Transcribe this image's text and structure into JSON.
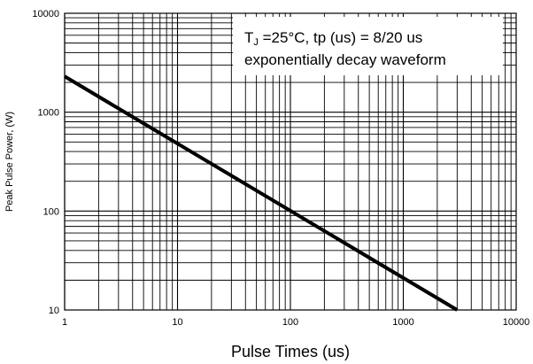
{
  "chart_data": {
    "type": "line",
    "title": "",
    "xlabel": "Pulse Times (us)",
    "ylabel": "Peak Pulse Power, (W)",
    "x_scale": "log",
    "y_scale": "log",
    "xlim": [
      1,
      10000
    ],
    "ylim": [
      10,
      10000
    ],
    "x_ticks": [
      "1",
      "10",
      "100",
      "1000",
      "10000"
    ],
    "y_ticks": [
      "10",
      "100",
      "1000",
      "10000"
    ],
    "grid": true,
    "series": [
      {
        "x": [
          1,
          3000
        ],
        "y": [
          2300,
          10
        ]
      }
    ],
    "annotation": {
      "line1_main": "T",
      "line1_sub": "J",
      "line1_rest": " =25°C, tp (us) = 8/20 us",
      "line2": "exponentially decay waveform"
    }
  }
}
